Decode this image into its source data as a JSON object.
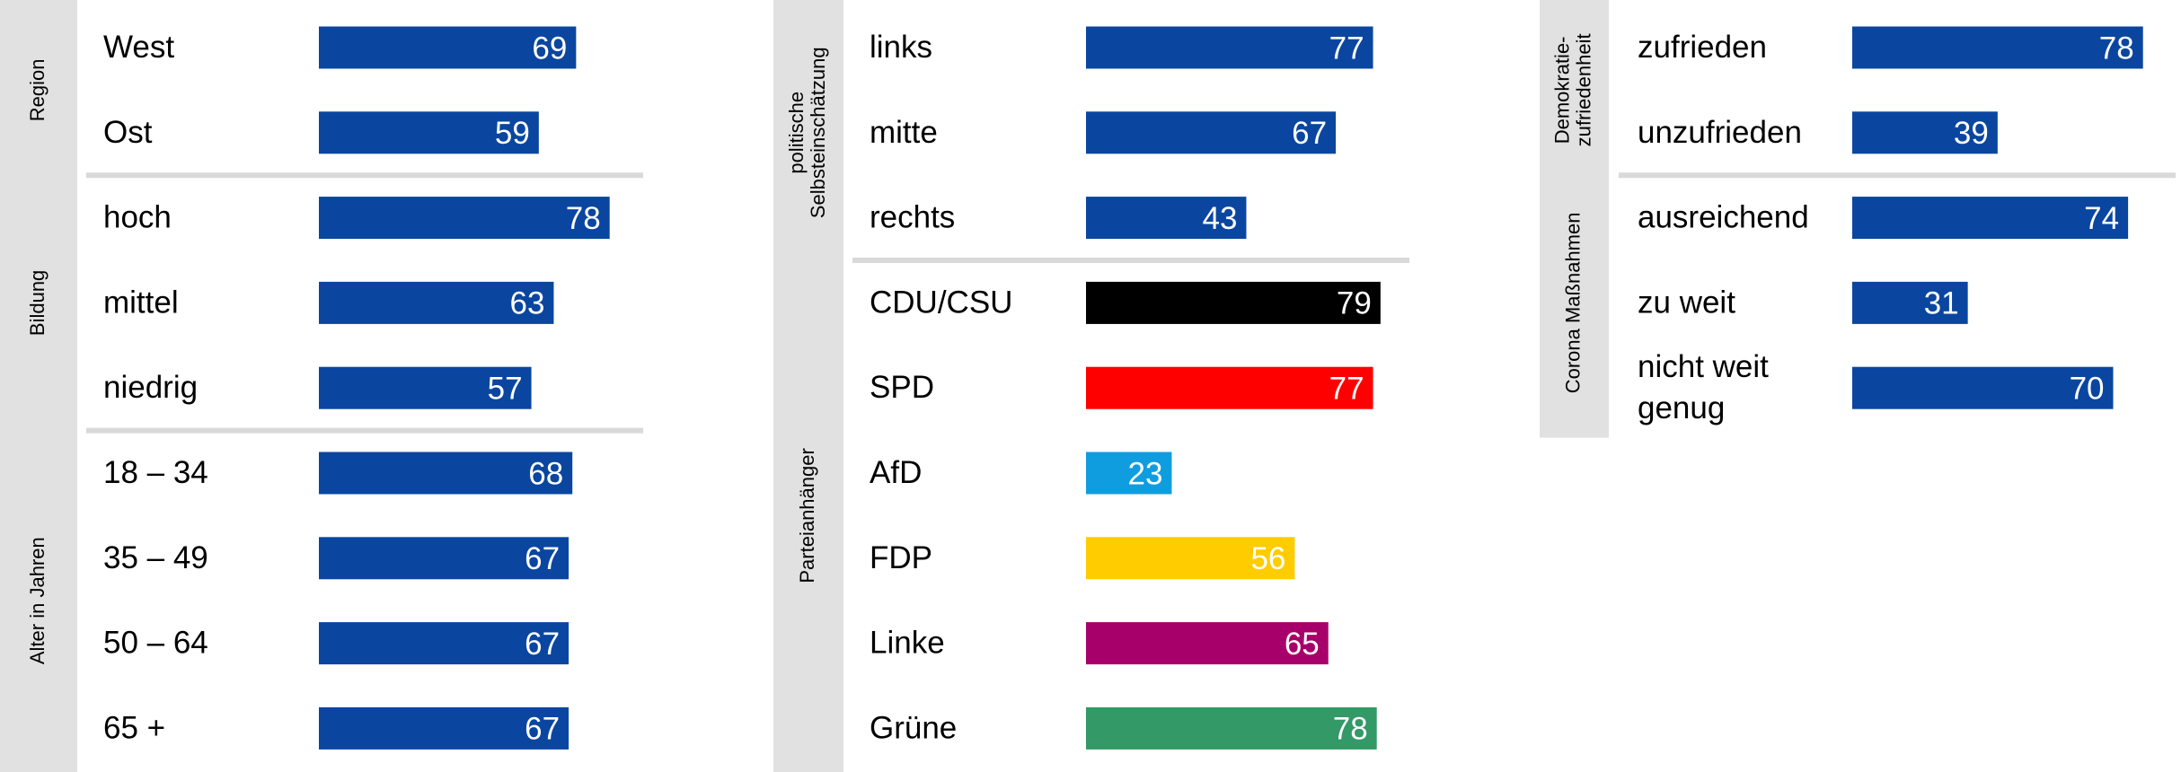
{
  "chart_data": [
    {
      "type": "bar",
      "xlim": [
        0,
        100
      ],
      "groups": [
        {
          "name": [
            "Region"
          ],
          "categories": [
            [
              "West"
            ],
            [
              "Ost"
            ]
          ],
          "values": [
            69,
            59
          ],
          "colors": [
            "#0a46a0",
            "#0a46a0"
          ]
        },
        {
          "name": [
            "Bildung"
          ],
          "categories": [
            [
              "hoch"
            ],
            [
              "mittel"
            ],
            [
              "niedrig"
            ]
          ],
          "values": [
            78,
            63,
            57
          ],
          "colors": [
            "#0a46a0",
            "#0a46a0",
            "#0a46a0"
          ]
        },
        {
          "name": [
            "Alter in Jahren"
          ],
          "categories": [
            [
              "18 – 34"
            ],
            [
              "35 – 49"
            ],
            [
              "50 – 64"
            ],
            [
              "65 +"
            ]
          ],
          "values": [
            68,
            67,
            67,
            67
          ],
          "colors": [
            "#0a46a0",
            "#0a46a0",
            "#0a46a0",
            "#0a46a0"
          ]
        }
      ]
    },
    {
      "type": "bar",
      "xlim": [
        0,
        100
      ],
      "groups": [
        {
          "name": [
            "politische",
            "Selbsteinschätzung"
          ],
          "categories": [
            [
              "links"
            ],
            [
              "mitte"
            ],
            [
              "rechts"
            ]
          ],
          "values": [
            77,
            67,
            43
          ],
          "colors": [
            "#0a46a0",
            "#0a46a0",
            "#0a46a0"
          ]
        },
        {
          "name": [
            "Parteianhänger"
          ],
          "categories": [
            [
              "CDU/CSU"
            ],
            [
              "SPD"
            ],
            [
              "AfD"
            ],
            [
              "FDP"
            ],
            [
              "Linke"
            ],
            [
              "Grüne"
            ]
          ],
          "values": [
            79,
            77,
            23,
            56,
            65,
            78
          ],
          "colors": [
            "#000000",
            "#ff0000",
            "#0f9de0",
            "#ffcc00",
            "#a8006a",
            "#339966"
          ]
        }
      ]
    },
    {
      "type": "bar",
      "xlim": [
        0,
        100
      ],
      "groups": [
        {
          "name": [
            "Demokratie-",
            "zufriedenheit"
          ],
          "categories": [
            [
              "zufrieden"
            ],
            [
              "unzufrieden"
            ]
          ],
          "values": [
            78,
            39
          ],
          "colors": [
            "#0a46a0",
            "#0a46a0"
          ]
        },
        {
          "name": [
            "Corona  Maßnahmen"
          ],
          "categories": [
            [
              "ausreichend"
            ],
            [
              "zu weit"
            ],
            [
              "nicht weit",
              "genug"
            ]
          ],
          "values": [
            74,
            31,
            70
          ],
          "colors": [
            "#0a46a0",
            "#0a46a0",
            "#0a46a0"
          ]
        }
      ]
    }
  ]
}
